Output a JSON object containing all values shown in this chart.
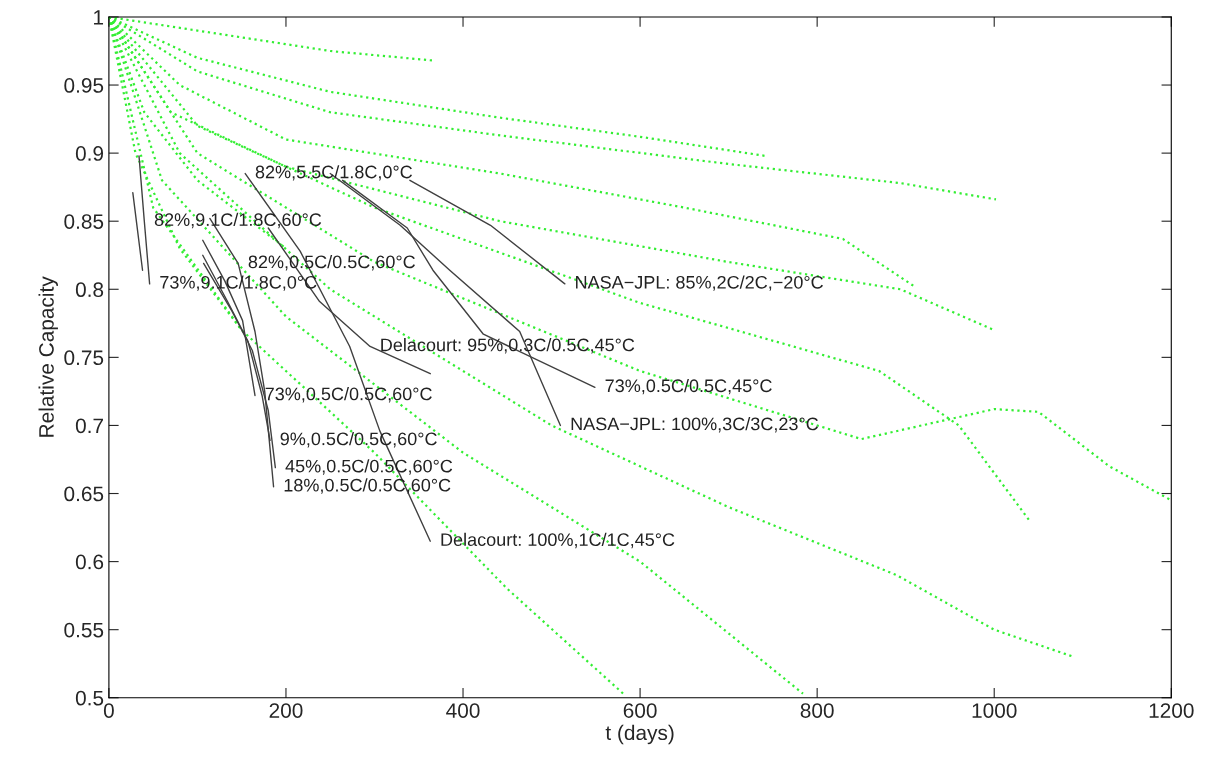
{
  "chart_data": {
    "type": "line",
    "xlabel": "t (days)",
    "ylabel": "Relative Capacity",
    "xlim": [
      0,
      1200
    ],
    "ylim": [
      0.5,
      1
    ],
    "xticks": [
      0,
      200,
      400,
      600,
      800,
      1000,
      1200
    ],
    "yticks": [
      0.5,
      0.55,
      0.6,
      0.65,
      0.7,
      0.75,
      0.8,
      0.85,
      0.9,
      0.95,
      1
    ],
    "marker": "none",
    "series": [
      {
        "color": "#33ee33",
        "line_style": "dotted",
        "x": [
          0,
          100,
          250,
          366
        ],
        "values": [
          1,
          0.99,
          0.975,
          0.968
        ]
      },
      {
        "color": "#33ee33",
        "line_style": "dotted",
        "x": [
          0,
          100,
          250,
          442,
          600,
          741
        ],
        "values": [
          1,
          0.97,
          0.945,
          0.926,
          0.912,
          0.898
        ]
      },
      {
        "color": "#33ee33",
        "line_style": "dotted",
        "x": [
          0,
          100,
          250,
          442,
          700,
          894,
          1002
        ],
        "values": [
          1,
          0.96,
          0.93,
          0.913,
          0.892,
          0.878,
          0.866
        ]
      },
      {
        "color": "#33ee33",
        "line_style": "dotted",
        "x": [
          0,
          80,
          200,
          442,
          650,
          829,
          910
        ],
        "values": [
          1,
          0.95,
          0.91,
          0.885,
          0.86,
          0.837,
          0.802
        ]
      },
      {
        "color": "#33ee33",
        "line_style": "dotted",
        "x": [
          0,
          70,
          200,
          442,
          700,
          894,
          1000
        ],
        "values": [
          1,
          0.93,
          0.89,
          0.85,
          0.82,
          0.8,
          0.77
        ]
      },
      {
        "color": "#33ee33",
        "line_style": "dotted",
        "x": [
          0,
          100,
          300,
          600,
          850,
          1000,
          1050,
          1130,
          1200
        ],
        "values": [
          1,
          0.9,
          0.82,
          0.74,
          0.69,
          0.712,
          0.71,
          0.67,
          0.645
        ]
      },
      {
        "color": "#33ee33",
        "line_style": "dotted",
        "x": [
          0,
          100,
          300,
          600,
          870,
          960,
          1040
        ],
        "values": [
          1,
          0.92,
          0.86,
          0.79,
          0.74,
          0.7,
          0.63
        ]
      },
      {
        "color": "#33ee33",
        "line_style": "dotted",
        "x": [
          0,
          80,
          250,
          500,
          700,
          890,
          1000,
          1090
        ],
        "values": [
          1,
          0.9,
          0.8,
          0.7,
          0.64,
          0.59,
          0.55,
          0.53
        ]
      },
      {
        "color": "#33ee33",
        "line_style": "dotted",
        "x": [
          0,
          60,
          200,
          400,
          600,
          784
        ],
        "values": [
          1,
          0.88,
          0.78,
          0.68,
          0.6,
          0.503
        ]
      },
      {
        "color": "#33ee33",
        "line_style": "dotted",
        "x": [
          0,
          50,
          150,
          300,
          450,
          581
        ],
        "values": [
          1,
          0.86,
          0.77,
          0.68,
          0.58,
          0.503
        ]
      },
      {
        "color": "#33ee33",
        "line_style": "dotted",
        "x": [
          0,
          30,
          80,
          150
        ],
        "values": [
          1,
          0.9,
          0.83,
          0.77
        ]
      },
      {
        "color": "#33ee33",
        "line_style": "dotted",
        "x": [
          0,
          40,
          100,
          200
        ],
        "values": [
          1,
          0.93,
          0.88,
          0.83
        ]
      },
      {
        "color": "#404040",
        "line_style": "solid",
        "x": [
          34,
          40,
          46
        ],
        "values": [
          0.898,
          0.85,
          0.804
        ]
      },
      {
        "color": "#404040",
        "line_style": "solid",
        "x": [
          27,
          38
        ],
        "values": [
          0.871,
          0.814
        ]
      },
      {
        "color": "#404040",
        "line_style": "solid",
        "x": [
          114,
          146,
          165,
          176,
          186
        ],
        "values": [
          0.852,
          0.819,
          0.769,
          0.725,
          0.655
        ]
      },
      {
        "color": "#404040",
        "line_style": "solid",
        "x": [
          106,
          131,
          151,
          165
        ],
        "values": [
          0.836,
          0.806,
          0.777,
          0.722
        ]
      },
      {
        "color": "#404040",
        "line_style": "solid",
        "x": [
          106,
          134,
          157,
          173,
          182
        ],
        "values": [
          0.825,
          0.791,
          0.762,
          0.722,
          0.689
        ]
      },
      {
        "color": "#404040",
        "line_style": "solid",
        "x": [
          107,
          139,
          162,
          180,
          188
        ],
        "values": [
          0.819,
          0.784,
          0.755,
          0.711,
          0.669
        ]
      },
      {
        "color": "#404040",
        "line_style": "solid",
        "x": [
          154,
          216,
          272,
          306,
          363
        ],
        "values": [
          0.885,
          0.828,
          0.758,
          0.696,
          0.615
        ]
      },
      {
        "color": "#404040",
        "line_style": "solid",
        "x": [
          180,
          238,
          295,
          363
        ],
        "values": [
          0.845,
          0.791,
          0.758,
          0.738
        ]
      },
      {
        "color": "#404040",
        "line_style": "solid",
        "x": [
          250,
          329,
          385,
          464,
          510
        ],
        "values": [
          0.885,
          0.847,
          0.814,
          0.769,
          0.7
        ]
      },
      {
        "color": "#404040",
        "line_style": "solid",
        "x": [
          340,
          431,
          515
        ],
        "values": [
          0.88,
          0.847,
          0.804
        ]
      },
      {
        "color": "#404040",
        "line_style": "solid",
        "x": [
          264,
          337,
          366,
          423,
          549
        ],
        "values": [
          0.88,
          0.845,
          0.814,
          0.767,
          0.728
        ]
      }
    ],
    "annotations": [
      {
        "text": "82%,5.5C/1.8C,0°C",
        "x": 154,
        "y": 0.885
      },
      {
        "text": "82%,9.1C/1.8C,60°C",
        "x": 40,
        "y": 0.85
      },
      {
        "text": "82%,0.5C/0.5C,60°C",
        "x": 146,
        "y": 0.819
      },
      {
        "text": "73%,9.1C/1.8C,0°C",
        "x": 46,
        "y": 0.804
      },
      {
        "text": "NASA−JPL: 85%,2C/2C,−20°C",
        "x": 515,
        "y": 0.804
      },
      {
        "text": "Delacourt: 95%,0.3C/0.5C,45°C",
        "x": 295,
        "y": 0.758
      },
      {
        "text": "73%,0.5C/0.5C,45°C",
        "x": 549,
        "y": 0.728
      },
      {
        "text": "73%,0.5C/0.5C,60°C",
        "x": 165,
        "y": 0.722
      },
      {
        "text": "NASA−JPL: 100%,3C/3C,23°C",
        "x": 510,
        "y": 0.7
      },
      {
        "text": "9%,0.5C/0.5C,60°C",
        "x": 182,
        "y": 0.689
      },
      {
        "text": "45%,0.5C/0.5C,60°C",
        "x": 188,
        "y": 0.669
      },
      {
        "text": "18%,0.5C/0.5C,60°C",
        "x": 186,
        "y": 0.655
      },
      {
        "text": "Delacourt: 100%,1C/1C,45°C",
        "x": 363,
        "y": 0.615
      }
    ]
  }
}
